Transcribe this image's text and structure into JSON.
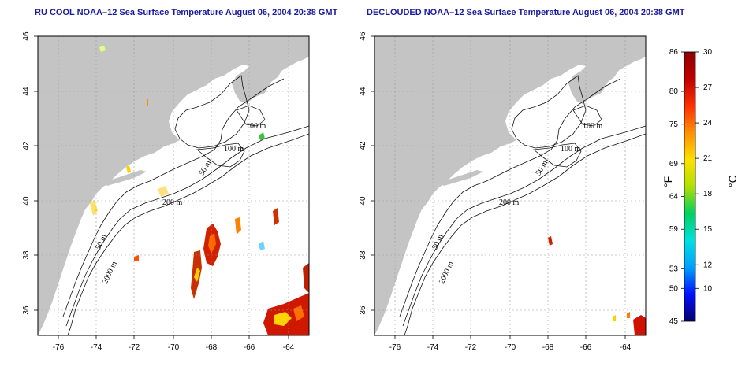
{
  "titles": {
    "left": "RU COOL NOAA–12 Sea Surface Temperature August 06, 2004 20:38 GMT",
    "right": "DECLOUDED NOAA–12 Sea Surface Temperature August 06, 2004 20:38 GMT"
  },
  "axes": {
    "lon_ticks": [
      "-76",
      "-74",
      "-72",
      "-70",
      "-68",
      "-66",
      "-64"
    ],
    "lat_ticks": [
      "46",
      "44",
      "42",
      "40",
      "38",
      "36"
    ]
  },
  "contour_labels": {
    "left": [
      "100 m",
      "100 m",
      "50 m",
      "200 m",
      "50 m",
      "2000 m"
    ],
    "right": [
      "100 m",
      "100 m",
      "50 m",
      "200 m",
      "50 m",
      "2000 m"
    ]
  },
  "colorbar": {
    "fahrenheit_ticks": [
      "86",
      "80",
      "75",
      "69",
      "64",
      "59",
      "53",
      "50",
      "45"
    ],
    "celsius_ticks": [
      "30",
      "27",
      "24",
      "21",
      "18",
      "15",
      "12",
      "10"
    ],
    "fahrenheit_unit": "°F",
    "celsius_unit": "°C",
    "colors": [
      "#08006e",
      "#0010ff",
      "#00a0ff",
      "#00e0e0",
      "#00d060",
      "#b0e000",
      "#ffe000",
      "#ff9000",
      "#ff3000",
      "#c00000",
      "#900000"
    ]
  },
  "colors": {
    "land": "#c4c4c4",
    "sea": "#ffffff",
    "grid": "#9a9a9a",
    "title": "#1a1aa0"
  }
}
